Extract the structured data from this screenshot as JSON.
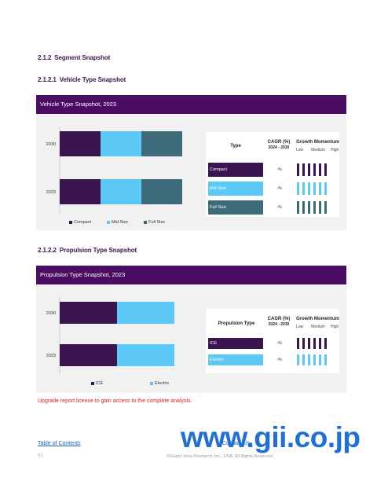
{
  "headings": {
    "segment": {
      "num": "2.1.2",
      "label": "Segment Snapshot"
    },
    "vehicle": {
      "num": "2.1.2.1",
      "label": "Vehicle Type Snapshot"
    },
    "propulsion": {
      "num": "2.1.2.2",
      "label": "Propulsion Type Snapshot"
    }
  },
  "vehicle_panel": {
    "title": "Vehicle Type Snapshot, 2023",
    "table": {
      "col_type": "Type",
      "col_cagr": "CAGR (%)",
      "col_cagr_range": "2024 - 2030",
      "col_growth": "Growth Momentum",
      "low": "Low",
      "medium": "Medium",
      "high": "High",
      "rows": [
        {
          "label": "Compact",
          "cagr": "-%",
          "color": "#3b1550"
        },
        {
          "label": "Mid Size",
          "cagr": "-%",
          "color": "#5bc8f5"
        },
        {
          "label": "Full Size",
          "cagr": "-%",
          "color": "#3d6b7a"
        }
      ]
    }
  },
  "propulsion_panel": {
    "title": "Propulsion Type Snapshot, 2023",
    "table": {
      "col_type": "Propulsion Type",
      "col_cagr": "CAGR (%)",
      "col_cagr_range": "2024 - 2030",
      "col_growth": "Growth Momentum",
      "low": "Low",
      "medium": "Medium",
      "high": "High",
      "rows": [
        {
          "label": "ICE",
          "cagr": "-%",
          "color": "#3b1550"
        },
        {
          "label": "Electric",
          "cagr": "-%",
          "color": "#5bc8f5"
        }
      ]
    }
  },
  "chart_data": [
    {
      "type": "bar",
      "orientation": "horizontal",
      "stacked": true,
      "categories": [
        "2030",
        "2023"
      ],
      "series": [
        {
          "name": "Compact",
          "values": [
            1,
            1
          ],
          "color": "#3b1550"
        },
        {
          "name": "Mid Size",
          "values": [
            1,
            1
          ],
          "color": "#5bc8f5"
        },
        {
          "name": "Full Size",
          "values": [
            1,
            1
          ],
          "color": "#3d6b7a"
        }
      ],
      "legend": "bottom"
    },
    {
      "type": "bar",
      "orientation": "horizontal",
      "stacked": true,
      "categories": [
        "2030",
        "2023"
      ],
      "series": [
        {
          "name": "ICE",
          "values": [
            1,
            1
          ],
          "color": "#3b1550"
        },
        {
          "name": "Electric",
          "values": [
            1,
            1
          ],
          "color": "#5bc8f5"
        }
      ],
      "legend": "bottom"
    }
  ],
  "footer": {
    "note": "Upgrade report license to gain access to the complete analysis.",
    "toc": "Table of Contents",
    "contact": "Contact Us",
    "page": "61",
    "copyright": "©Grand View Research, Inc., USA. All Rights Reserved",
    "watermark": "www.gii.co.jp"
  }
}
